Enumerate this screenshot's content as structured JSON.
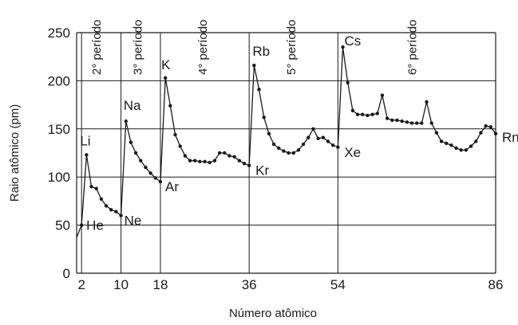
{
  "chart_data": {
    "type": "line",
    "xlabel": "Número atômico",
    "ylabel": "Raio atômico (pm)",
    "xticks": [
      2,
      10,
      18,
      36,
      54,
      86
    ],
    "yticks": [
      0,
      50,
      100,
      150,
      200,
      250
    ],
    "xlim": [
      1,
      86
    ],
    "ylim": [
      0,
      250
    ],
    "grid": "horizontal at y ticks; vertical at period boundaries",
    "period_boundaries": [
      2,
      10,
      18,
      36,
      54
    ],
    "periods": [
      {
        "label": "2° período",
        "between": [
          2,
          10
        ]
      },
      {
        "label": "3° período",
        "between": [
          10,
          18
        ]
      },
      {
        "label": "4° período",
        "between": [
          18,
          36
        ]
      },
      {
        "label": "5° período",
        "between": [
          36,
          54
        ]
      },
      {
        "label": "6° período",
        "between": [
          54,
          86
        ]
      }
    ],
    "series": [
      {
        "x": [
          1,
          2,
          3,
          4,
          5,
          6,
          7,
          8,
          9,
          10,
          11,
          12,
          13,
          14,
          15,
          16,
          17,
          18,
          19,
          20,
          21,
          22,
          23,
          24,
          25,
          26,
          27,
          28,
          29,
          30,
          31,
          32,
          33,
          34,
          35,
          36,
          37,
          38,
          39,
          40,
          41,
          42,
          43,
          44,
          45,
          46,
          47,
          48,
          49,
          50,
          51,
          52,
          53,
          54,
          55,
          56,
          57,
          58,
          59,
          60,
          61,
          62,
          63,
          64,
          65,
          66,
          67,
          68,
          69,
          70,
          71,
          72,
          73,
          74,
          75,
          76,
          77,
          78,
          79,
          80,
          81,
          82,
          83,
          84,
          85,
          86
        ],
        "y": [
          37,
          50,
          123,
          90,
          88,
          77,
          70,
          66,
          64,
          60,
          158,
          136,
          125,
          117,
          110,
          104,
          99,
          95,
          203,
          174,
          144,
          132,
          122,
          117,
          117,
          116,
          116,
          115,
          117,
          125,
          125,
          122,
          121,
          117,
          114,
          112,
          216,
          191,
          162,
          145,
          134,
          130,
          127,
          125,
          125,
          128,
          134,
          141,
          150,
          140,
          141,
          137,
          133,
          131,
          235,
          198,
          169,
          165,
          165,
          164,
          165,
          166,
          185,
          161,
          159,
          159,
          158,
          157,
          156,
          156,
          156,
          178,
          156,
          146,
          137,
          135,
          133,
          130,
          128,
          128,
          132,
          137,
          146,
          153,
          152,
          145
        ]
      }
    ],
    "annotations": [
      {
        "text": "He",
        "x": 2,
        "y": 50
      },
      {
        "text": "Li",
        "x": 3,
        "y": 123
      },
      {
        "text": "Ne",
        "x": 10,
        "y": 60
      },
      {
        "text": "Na",
        "x": 11,
        "y": 158
      },
      {
        "text": "Ar",
        "x": 18,
        "y": 95
      },
      {
        "text": "K",
        "x": 19,
        "y": 203
      },
      {
        "text": "Kr",
        "x": 36,
        "y": 112
      },
      {
        "text": "Rb",
        "x": 37,
        "y": 216
      },
      {
        "text": "Xe",
        "x": 54,
        "y": 131
      },
      {
        "text": "Cs",
        "x": 55,
        "y": 235
      },
      {
        "text": "Rn",
        "x": 86,
        "y": 145
      }
    ]
  },
  "colors": {
    "line": "#1a1a1a",
    "grid": "#1a1a1a",
    "background": "#ffffff"
  }
}
